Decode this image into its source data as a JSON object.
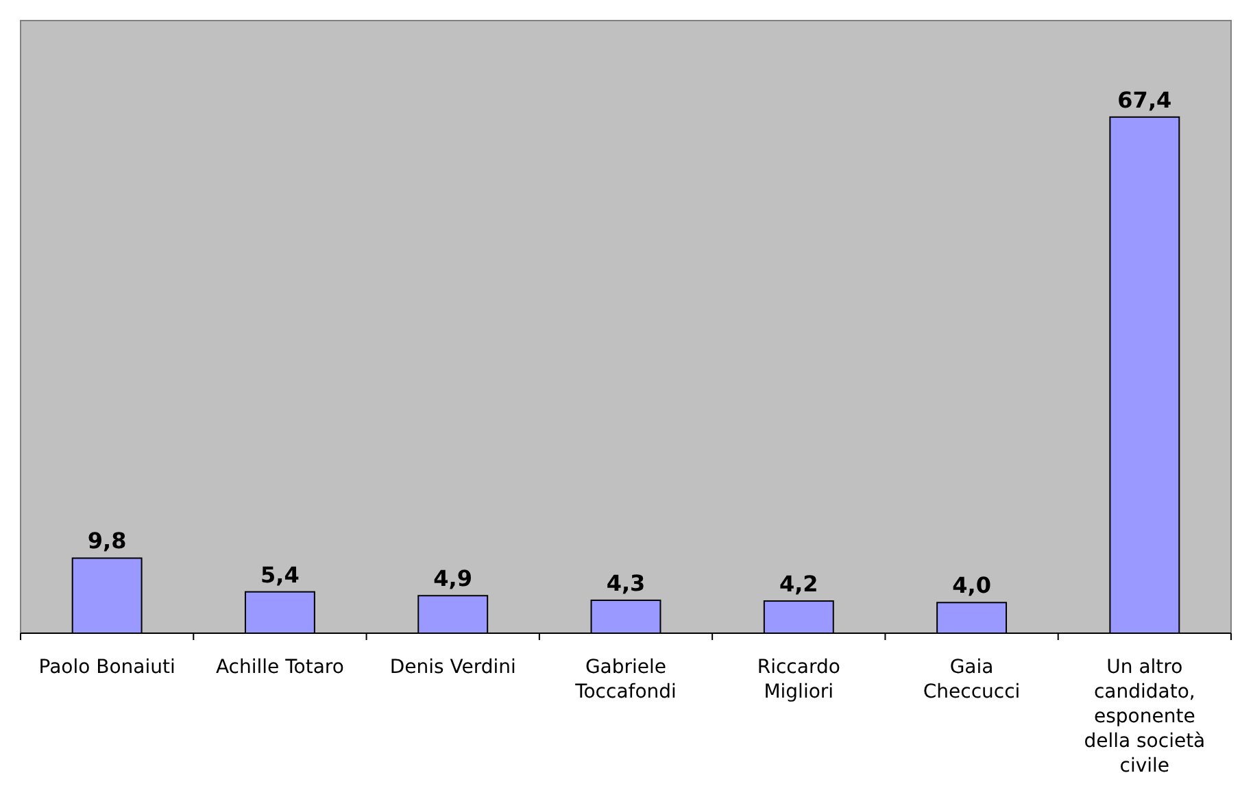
{
  "chart_data": {
    "type": "bar",
    "categories": [
      "Paolo Bonaiuti",
      "Achille Totaro",
      "Denis Verdini",
      "Gabriele Toccafondi",
      "Riccardo Migliori",
      "Gaia Checcucci",
      "Un altro candidato, esponente della società civile"
    ],
    "values": [
      9.8,
      5.4,
      4.9,
      4.3,
      4.2,
      4.0,
      67.4
    ],
    "value_labels": [
      "9,8",
      "5,4",
      "4,9",
      "4,3",
      "4,2",
      "4,0",
      "67,4"
    ],
    "color": "#9999ff",
    "ylim": [
      0,
      80
    ]
  }
}
